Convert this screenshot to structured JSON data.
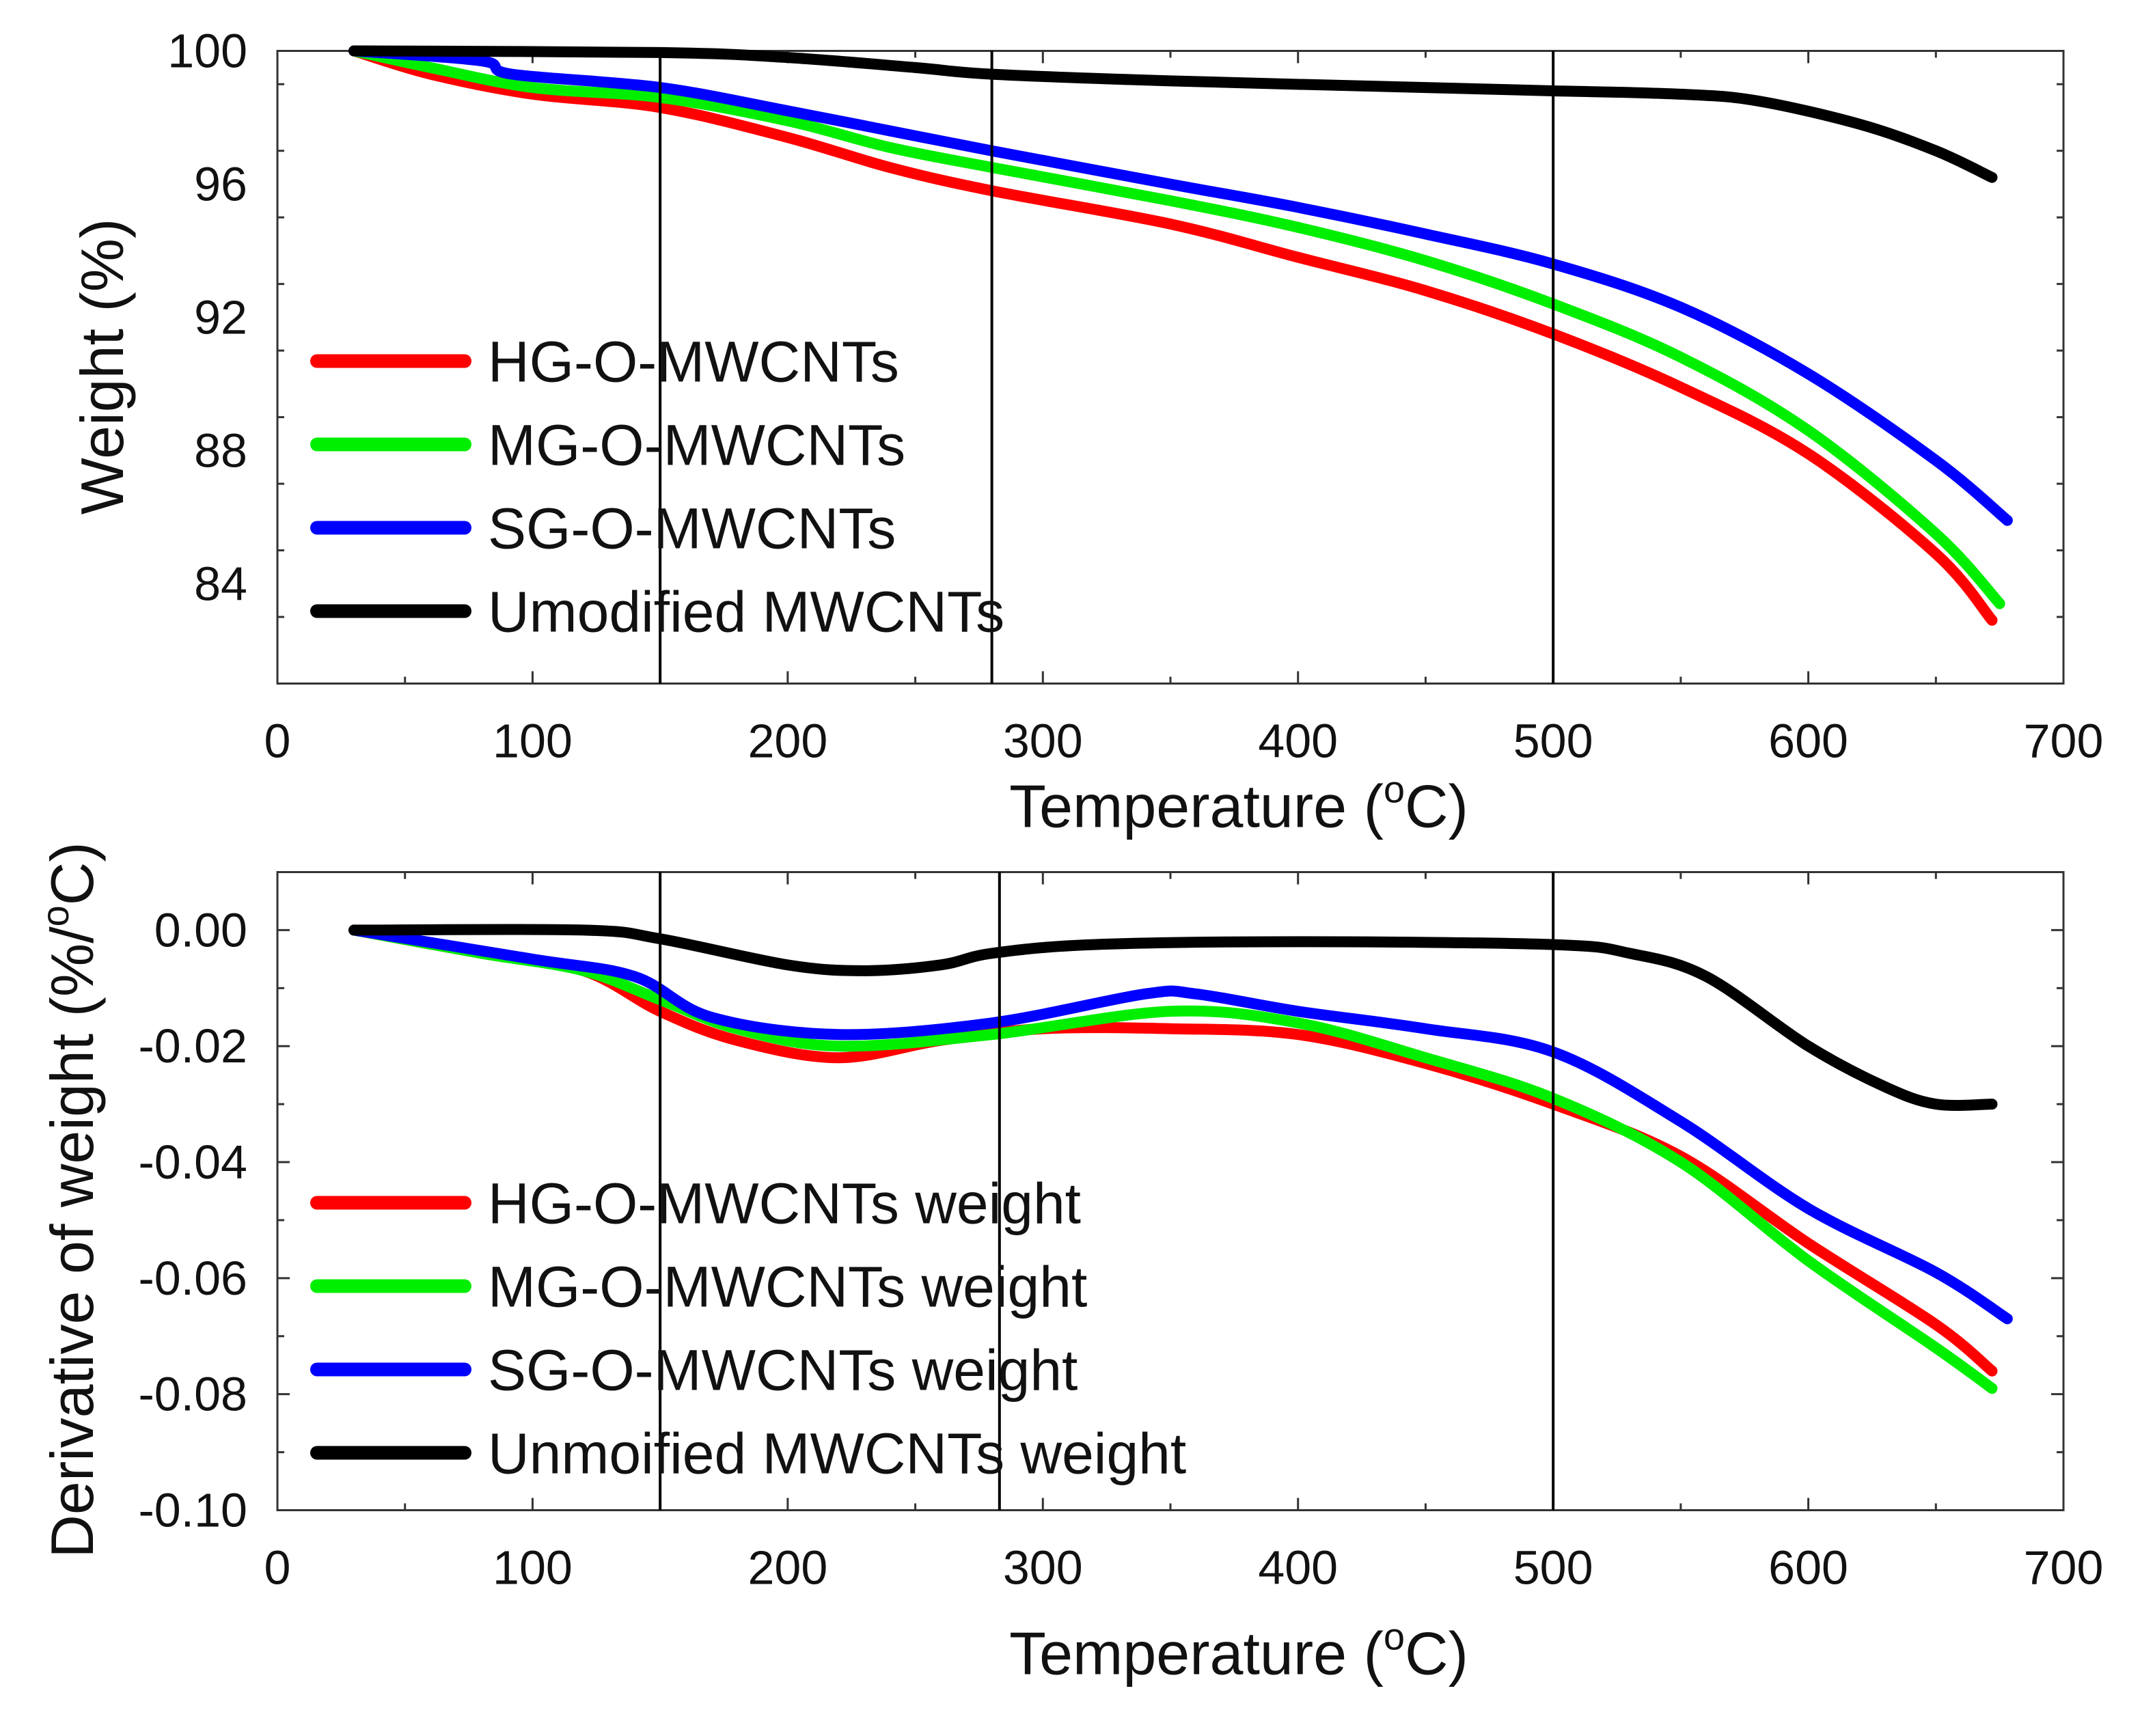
{
  "chart_data": [
    {
      "type": "line",
      "xlabel": "Temperature (oC)",
      "xlabel_main": "Temperature (",
      "xlabel_sup": "o",
      "xlabel_end": "C)",
      "ylabel": "Weight (%)",
      "xlim": [
        0,
        700
      ],
      "ylim": [
        81,
        100
      ],
      "xticks": [
        0,
        100,
        200,
        300,
        400,
        500,
        600,
        700
      ],
      "xtick_labels": [
        "0",
        "100",
        "200",
        "300",
        "400",
        "500",
        "600",
        "700"
      ],
      "yticks": [
        100,
        96,
        92,
        88,
        84
      ],
      "ytick_labels": [
        "100",
        "96",
        "92",
        "88",
        "84"
      ],
      "vlines": [
        150,
        280,
        500
      ],
      "legend_position": "lower-left",
      "series": [
        {
          "name": "HG-O-MWCNTs",
          "color": "#ff0000",
          "x": [
            30,
            60,
            100,
            150,
            200,
            240,
            280,
            350,
            400,
            450,
            500,
            550,
            600,
            650,
            672
          ],
          "y": [
            100,
            99.3,
            98.7,
            98.3,
            97.4,
            96.5,
            95.8,
            94.8,
            93.8,
            92.8,
            91.5,
            89.9,
            87.9,
            84.9,
            82.9
          ]
        },
        {
          "name": "MG-O-MWCNTs",
          "color": "#00ee00",
          "x": [
            30,
            60,
            100,
            150,
            200,
            240,
            280,
            350,
            400,
            450,
            500,
            550,
            600,
            650,
            675
          ],
          "y": [
            100,
            99.5,
            98.9,
            98.6,
            97.9,
            97.1,
            96.5,
            95.5,
            94.7,
            93.7,
            92.4,
            90.8,
            88.6,
            85.5,
            83.4
          ]
        },
        {
          "name": "SG-O-MWCNTs",
          "color": "#0000ff",
          "x": [
            30,
            80,
            92,
            150,
            200,
            240,
            280,
            350,
            400,
            450,
            500,
            550,
            600,
            650,
            678
          ],
          "y": [
            100,
            99.7,
            99.3,
            98.9,
            98.2,
            97.6,
            97.0,
            96.0,
            95.3,
            94.5,
            93.6,
            92.3,
            90.3,
            87.7,
            85.9
          ]
        },
        {
          "name": "Umodified MWCNTs",
          "color": "#000000",
          "x": [
            30,
            150,
            200,
            250,
            280,
            350,
            450,
            500,
            550,
            580,
            620,
            650,
            672
          ],
          "y": [
            100,
            99.95,
            99.8,
            99.5,
            99.3,
            99.1,
            98.9,
            98.8,
            98.7,
            98.5,
            97.8,
            97.0,
            96.2
          ]
        }
      ]
    },
    {
      "type": "line",
      "xlabel": "Temperature (oC)",
      "xlabel_main": "Temperature (",
      "xlabel_sup": "o",
      "xlabel_end": "C)",
      "ylabel": "Derivative of weight (%/oC)",
      "ylabel_main": "Derivative of weight (%/",
      "ylabel_sup": "o",
      "ylabel_end": "C)",
      "xlim": [
        0,
        700
      ],
      "ylim": [
        -0.1,
        0.01
      ],
      "xticks": [
        0,
        100,
        200,
        300,
        400,
        500,
        600,
        700
      ],
      "xtick_labels": [
        "0",
        "100",
        "200",
        "300",
        "400",
        "500",
        "600",
        "700"
      ],
      "yticks": [
        0,
        -0.02,
        -0.04,
        -0.06,
        -0.08,
        -0.1
      ],
      "ytick_labels": [
        "0.00",
        "-0.02",
        "-0.04",
        "-0.06",
        "-0.08",
        "-0.10"
      ],
      "vlines": [
        150,
        283,
        500
      ],
      "legend_position": "lower-left",
      "series": [
        {
          "name": "HG-O-MWCNTs weight",
          "color": "#ff0000",
          "x": [
            30,
            80,
            120,
            150,
            180,
            220,
            260,
            300,
            350,
            400,
            450,
            500,
            550,
            600,
            650,
            672
          ],
          "y": [
            0,
            -0.004,
            -0.007,
            -0.014,
            -0.019,
            -0.022,
            -0.019,
            -0.017,
            -0.017,
            -0.018,
            -0.023,
            -0.03,
            -0.039,
            -0.054,
            -0.068,
            -0.076
          ]
        },
        {
          "name": "MG-O-MWCNTs weight",
          "color": "#00ee00",
          "x": [
            30,
            80,
            120,
            150,
            180,
            220,
            280,
            350,
            400,
            450,
            500,
            550,
            600,
            650,
            672
          ],
          "y": [
            0,
            -0.004,
            -0.007,
            -0.012,
            -0.017,
            -0.02,
            -0.018,
            -0.014,
            -0.016,
            -0.022,
            -0.029,
            -0.04,
            -0.057,
            -0.072,
            -0.079
          ]
        },
        {
          "name": "SG-O-MWCNTs weight",
          "color": "#0000ff",
          "x": [
            30,
            100,
            140,
            170,
            220,
            280,
            340,
            360,
            400,
            450,
            500,
            550,
            600,
            650,
            678
          ],
          "y": [
            0,
            -0.005,
            -0.008,
            -0.015,
            -0.018,
            -0.016,
            -0.011,
            -0.011,
            -0.014,
            -0.017,
            -0.021,
            -0.033,
            -0.048,
            -0.059,
            -0.067
          ]
        },
        {
          "name": "Unmoified MWCNTs weight",
          "color": "#000000",
          "x": [
            30,
            120,
            150,
            200,
            230,
            260,
            280,
            320,
            400,
            500,
            530,
            560,
            600,
            630,
            650,
            672
          ],
          "y": [
            0,
            0,
            -0.0015,
            -0.006,
            -0.007,
            -0.006,
            -0.004,
            -0.0025,
            -0.002,
            -0.0025,
            -0.004,
            -0.008,
            -0.02,
            -0.027,
            -0.03,
            -0.03
          ]
        }
      ]
    }
  ]
}
